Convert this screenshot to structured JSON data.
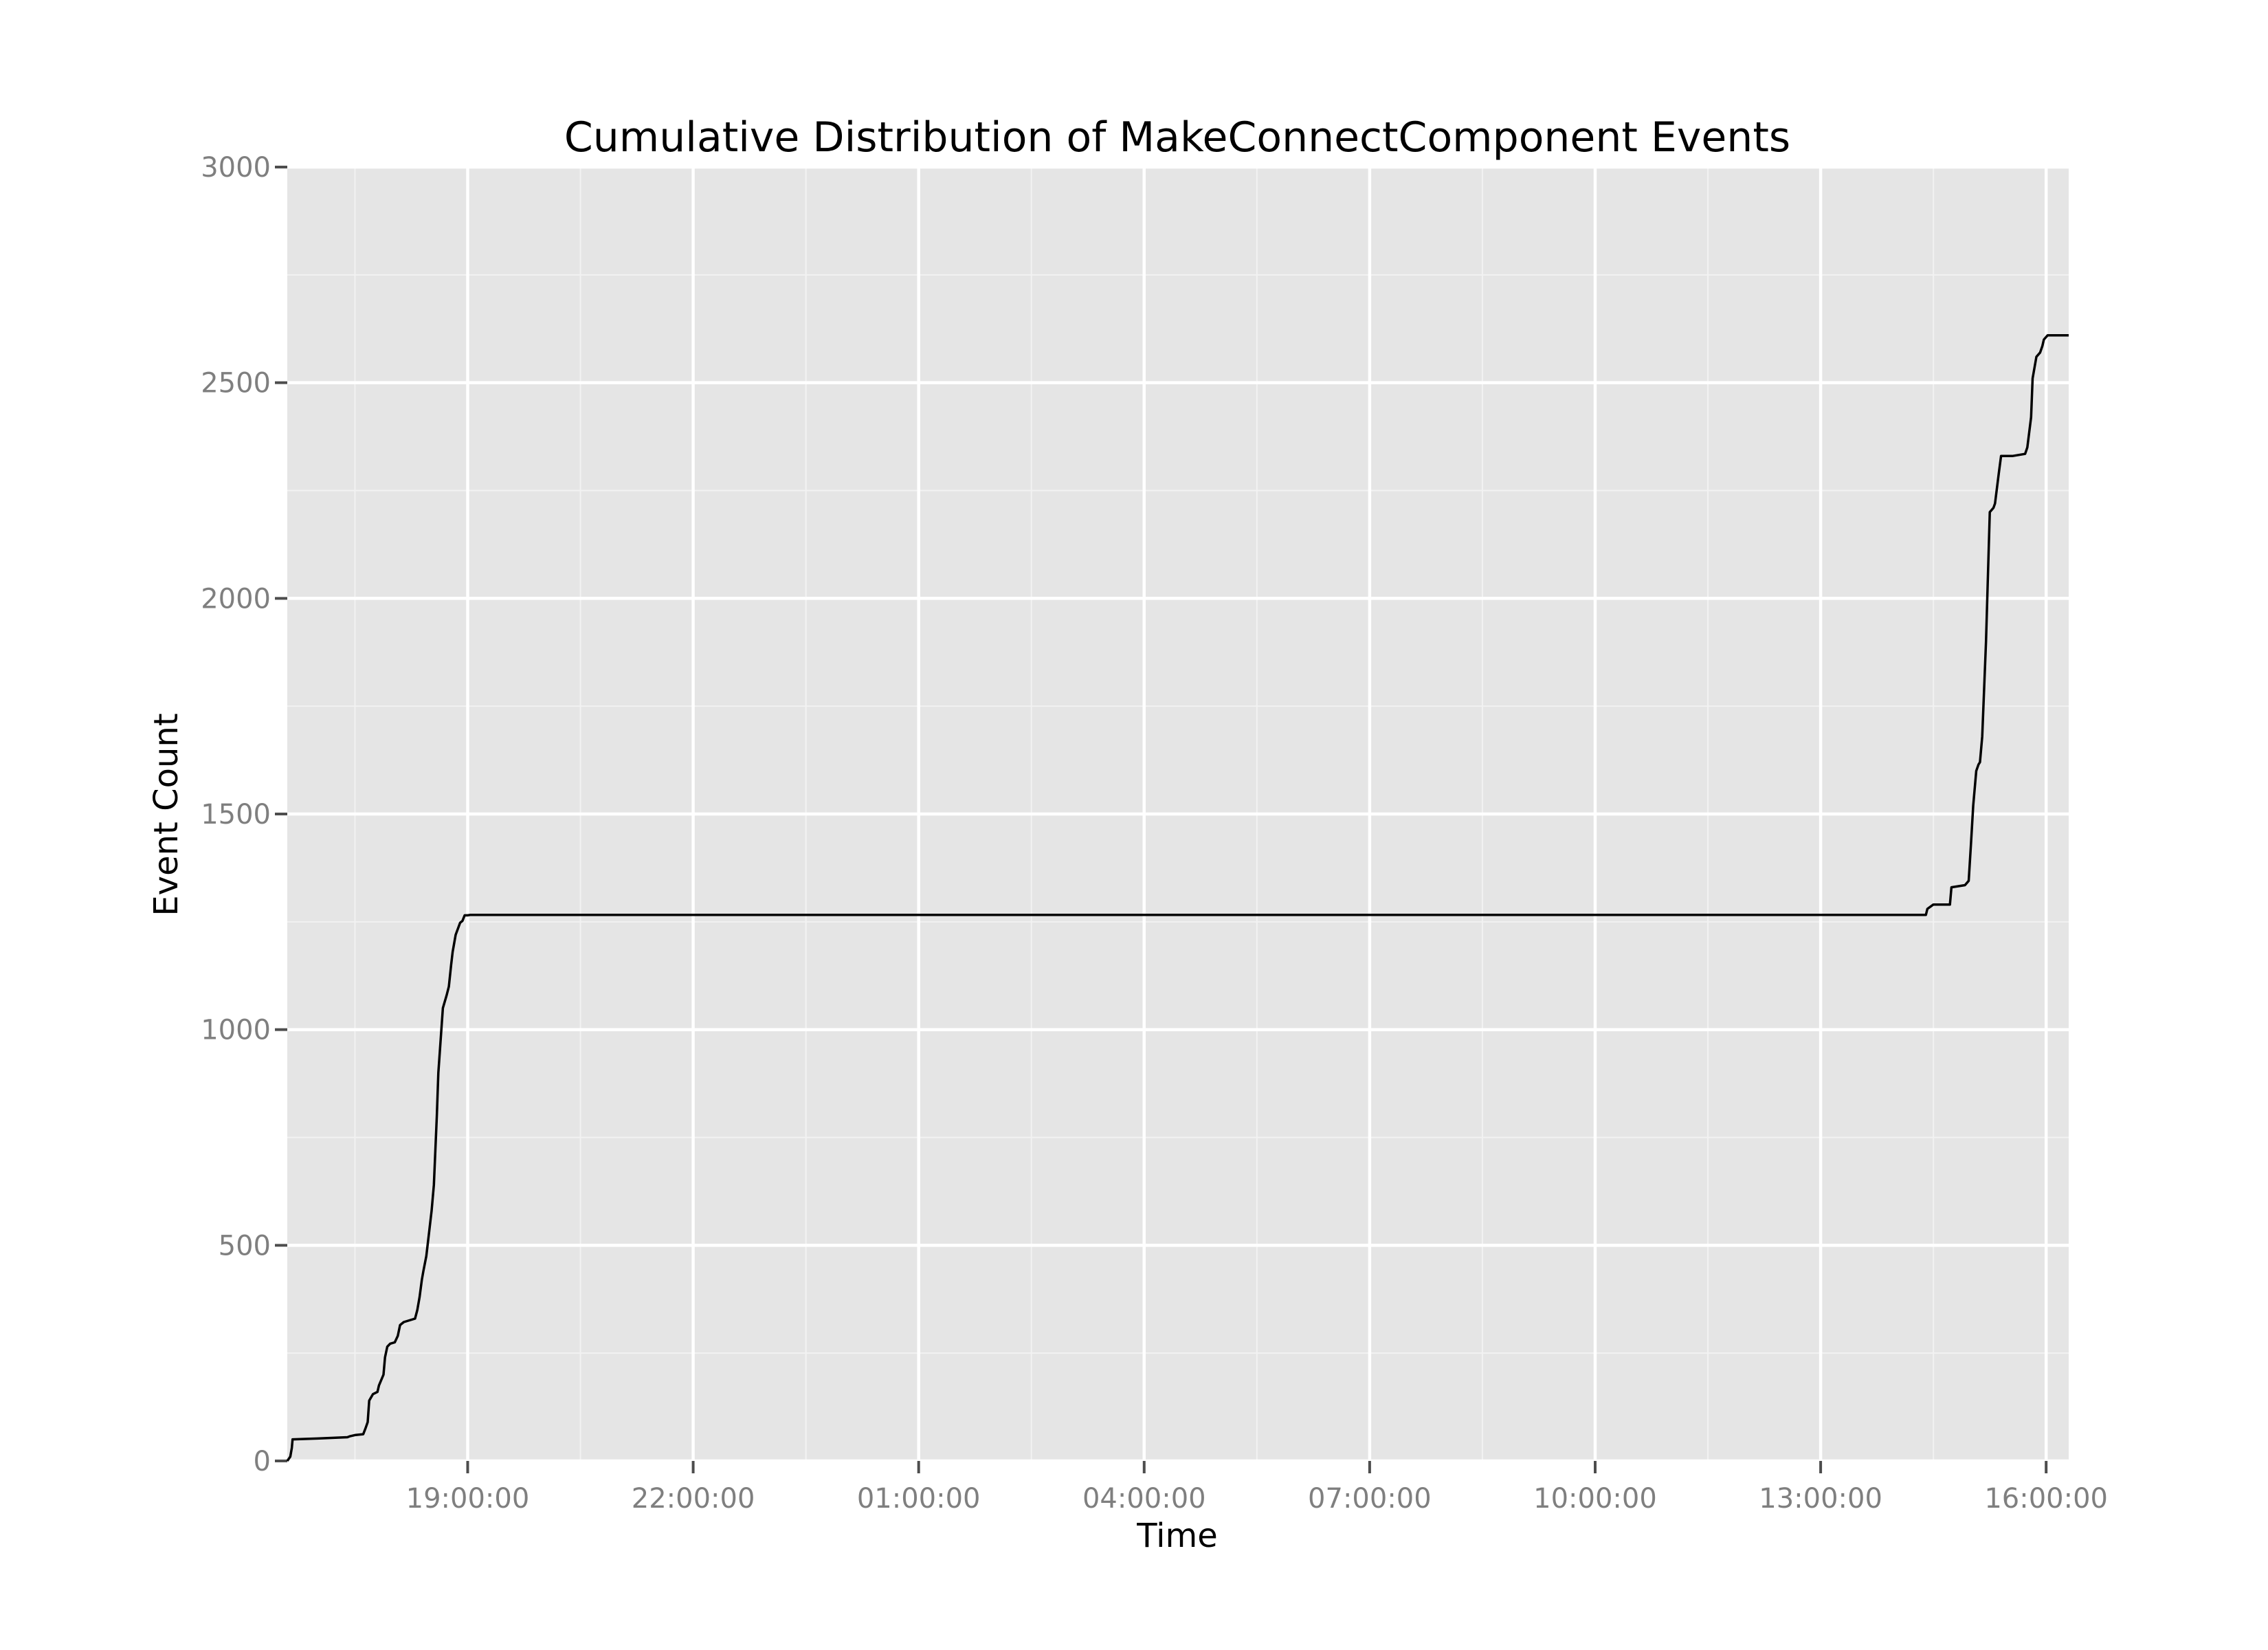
{
  "chart_data": {
    "type": "line",
    "title": "Cumulative Distribution of MakeConnectComponent Events",
    "xlabel": "Time",
    "ylabel": "Event Count",
    "x_unit": "hours",
    "x_ticks": [
      {
        "label": "19:00:00",
        "value": 19
      },
      {
        "label": "22:00:00",
        "value": 22
      },
      {
        "label": "01:00:00",
        "value": 25
      },
      {
        "label": "04:00:00",
        "value": 28
      },
      {
        "label": "07:00:00",
        "value": 31
      },
      {
        "label": "10:00:00",
        "value": 34
      },
      {
        "label": "13:00:00",
        "value": 37
      },
      {
        "label": "16:00:00",
        "value": 40
      }
    ],
    "y_ticks": [
      0,
      500,
      1000,
      1500,
      2000,
      2500,
      3000
    ],
    "xlim": [
      16.6,
      40.3
    ],
    "ylim": [
      0,
      3000
    ],
    "grid": true,
    "colors": {
      "panel": "#e5e5e5",
      "grid_major": "#ffffff",
      "grid_minor": "#f2f2f2",
      "line": "#000000",
      "tick_text": "#7f7f7f"
    },
    "series": [
      {
        "name": "",
        "x": [
          16.6,
          16.64,
          16.66,
          16.67,
          17.0,
          17.4,
          17.43,
          17.5,
          17.61,
          17.64,
          17.67,
          17.69,
          17.74,
          17.8,
          17.82,
          17.88,
          17.9,
          17.93,
          17.97,
          18.03,
          18.07,
          18.1,
          18.15,
          18.3,
          18.33,
          18.36,
          18.39,
          18.41,
          18.45,
          18.48,
          18.52,
          18.55,
          18.59,
          18.61,
          18.67,
          18.72,
          18.75,
          18.78,
          18.8,
          18.84,
          18.9,
          18.93,
          18.96,
          19.0,
          19.03,
          19.07,
          19.1,
          19.12,
          19.14,
          19.15,
          19.17,
          19.24,
          19.28,
          19.29,
          20.0,
          22.0,
          25.0,
          28.0,
          31.0,
          34.0,
          37.0,
          38.4,
          38.42,
          38.5,
          38.72,
          38.74,
          38.92,
          38.97,
          39.0,
          39.03,
          39.07,
          39.1,
          39.12,
          39.15,
          39.2,
          39.25,
          39.3,
          39.32,
          39.37,
          39.4,
          39.45,
          39.5,
          39.55,
          39.72,
          39.75,
          39.8,
          39.82,
          39.87,
          39.92,
          39.95,
          39.97,
          40.02,
          40.06,
          40.09,
          40.12,
          40.15,
          40.2,
          40.28,
          40.3
        ],
        "y": [
          0,
          10,
          30,
          50,
          52,
          55,
          57,
          60,
          62,
          75,
          90,
          140,
          155,
          160,
          175,
          200,
          240,
          265,
          272,
          275,
          290,
          315,
          322,
          330,
          350,
          380,
          420,
          440,
          475,
          520,
          580,
          640,
          800,
          900,
          1050,
          1080,
          1100,
          1150,
          1180,
          1220,
          1248,
          1252,
          1265,
          1265,
          1266,
          1266,
          1266,
          1266,
          1266,
          1266,
          1266,
          1266,
          1266,
          1266,
          1266,
          1266,
          1266,
          1266,
          1266,
          1266,
          1266,
          1266,
          1280,
          1290,
          1290,
          1330,
          1335,
          1345,
          1430,
          1520,
          1600,
          1615,
          1620,
          1680,
          1900,
          2200,
          2210,
          2220,
          2290,
          2330,
          2330,
          2330,
          2330,
          2335,
          2350,
          2420,
          2510,
          2560,
          2570,
          2585,
          2600,
          2610,
          2610,
          2610,
          2610,
          2610,
          2610,
          2610,
          2610
        ]
      }
    ]
  }
}
